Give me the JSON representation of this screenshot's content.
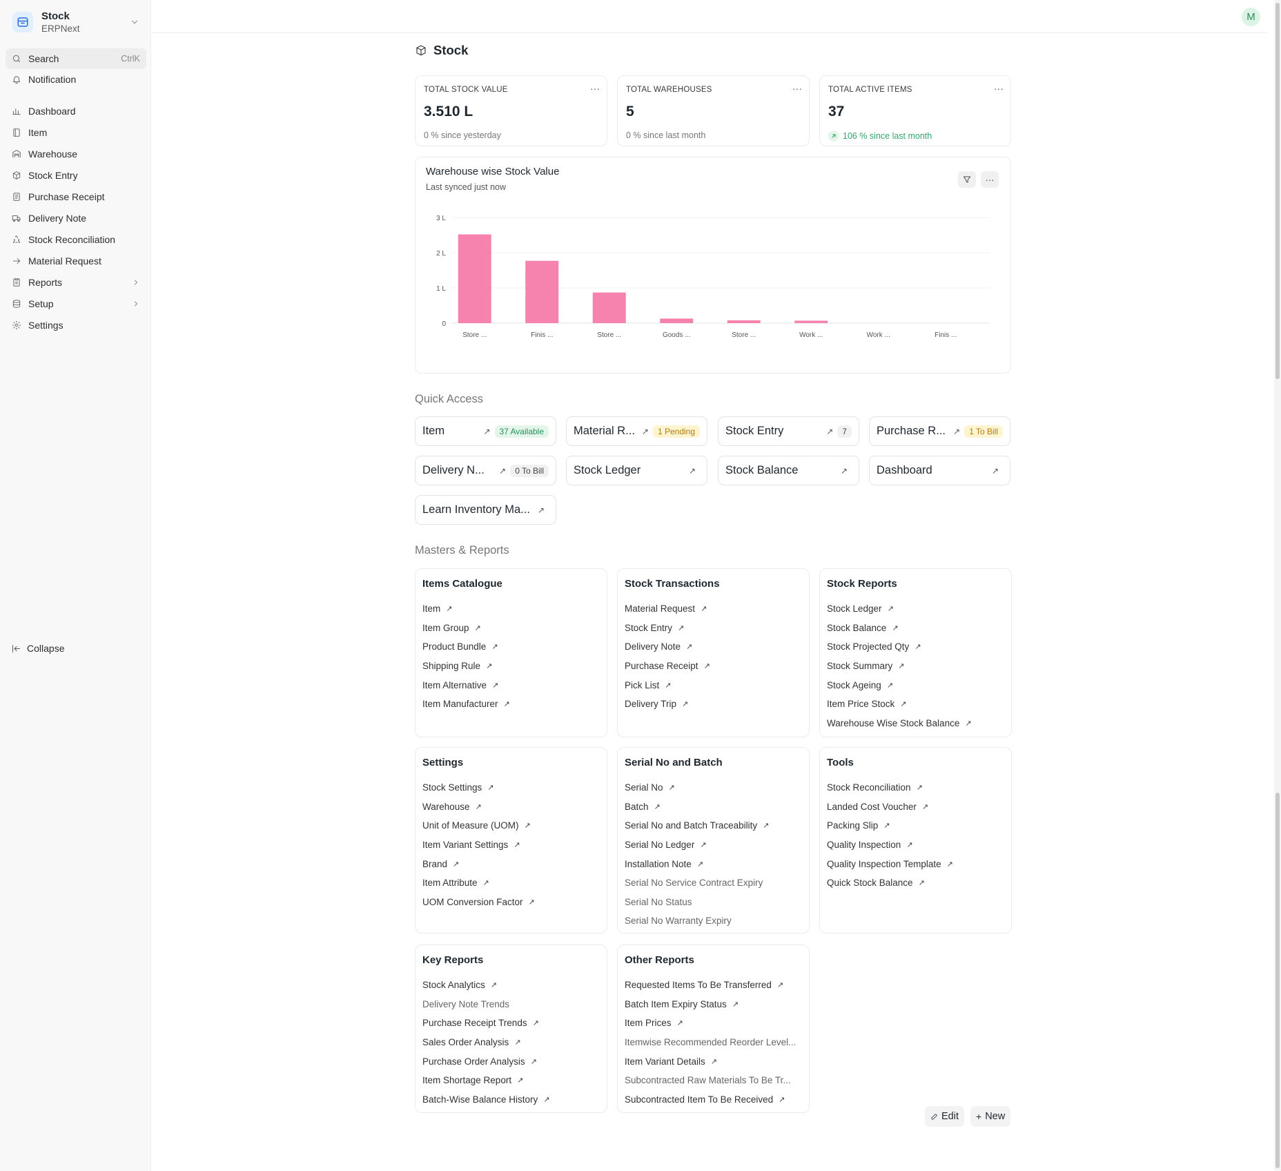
{
  "app": {
    "name": "Stock",
    "subtitle": "ERPNext"
  },
  "sidebar": {
    "search_label": "Search",
    "search_shortcut": "CtrlK",
    "notification_label": "Notification",
    "items": [
      {
        "label": "Dashboard",
        "icon": "bar-chart-icon"
      },
      {
        "label": "Item",
        "icon": "item-icon"
      },
      {
        "label": "Warehouse",
        "icon": "warehouse-icon"
      },
      {
        "label": "Stock Entry",
        "icon": "box-icon"
      },
      {
        "label": "Purchase Receipt",
        "icon": "receipt-icon"
      },
      {
        "label": "Delivery Note",
        "icon": "truck-icon"
      },
      {
        "label": "Stock Reconciliation",
        "icon": "recycle-icon"
      },
      {
        "label": "Material Request",
        "icon": "arrow-right-icon"
      },
      {
        "label": "Reports",
        "icon": "report-icon"
      },
      {
        "label": "Setup",
        "icon": "database-icon"
      },
      {
        "label": "Settings",
        "icon": "gear-icon"
      }
    ],
    "collapse_label": "Collapse"
  },
  "user": {
    "avatar_initial": "M"
  },
  "page": {
    "title": "Stock"
  },
  "number_cards": [
    {
      "label": "TOTAL STOCK VALUE",
      "value": "3.510 L",
      "stat": "0 % since yesterday"
    },
    {
      "label": "TOTAL WAREHOUSES",
      "value": "5",
      "stat": "0 % since last month"
    },
    {
      "label": "TOTAL ACTIVE ITEMS",
      "value": "37",
      "stat": "106 % since last month"
    }
  ],
  "chart_card": {
    "title": "Warehouse wise Stock Value",
    "subtitle": "Last synced just now"
  },
  "chart_data": {
    "type": "bar",
    "categories": [
      "Store ...",
      "Finis ...",
      "Store ...",
      "Goods ...",
      "Store ...",
      "Work ...",
      "Work ...",
      "Finis ..."
    ],
    "values": [
      252000,
      177000,
      87000,
      13000,
      8000,
      7000,
      0,
      0
    ],
    "yticks": [
      "0",
      "1 L",
      "2 L",
      "3 L"
    ],
    "ylim": [
      0,
      300000
    ],
    "color": "#f683ae",
    "grid": true
  },
  "quick_access": {
    "heading": "Quick Access",
    "items": [
      {
        "label": "Item",
        "badge": "37 Available",
        "badge_style": "green"
      },
      {
        "label": "Material R...",
        "badge": "1 Pending",
        "badge_style": "yellow"
      },
      {
        "label": "Stock Entry",
        "badge": "7",
        "badge_style": "gray"
      },
      {
        "label": "Purchase R...",
        "badge": "1 To Bill",
        "badge_style": "yellow"
      },
      {
        "label": "Delivery N...",
        "badge": "0 To Bill",
        "badge_style": "gray"
      },
      {
        "label": "Stock Ledger",
        "badge": "",
        "badge_style": ""
      },
      {
        "label": "Stock Balance",
        "badge": "",
        "badge_style": ""
      },
      {
        "label": "Dashboard",
        "badge": "",
        "badge_style": ""
      },
      {
        "label": "Learn Inventory Ma...",
        "badge": "",
        "badge_style": ""
      }
    ]
  },
  "masters": {
    "heading": "Masters & Reports",
    "cards": [
      {
        "title": "Items Catalogue",
        "links": [
          {
            "label": "Item",
            "arrow": true
          },
          {
            "label": "Item Group",
            "arrow": true
          },
          {
            "label": "Product Bundle",
            "arrow": true
          },
          {
            "label": "Shipping Rule",
            "arrow": true
          },
          {
            "label": "Item Alternative",
            "arrow": true
          },
          {
            "label": "Item Manufacturer",
            "arrow": true
          }
        ]
      },
      {
        "title": "Stock Transactions",
        "links": [
          {
            "label": "Material Request",
            "arrow": true
          },
          {
            "label": "Stock Entry",
            "arrow": true
          },
          {
            "label": "Delivery Note",
            "arrow": true
          },
          {
            "label": "Purchase Receipt",
            "arrow": true
          },
          {
            "label": "Pick List",
            "arrow": true
          },
          {
            "label": "Delivery Trip",
            "arrow": true
          }
        ]
      },
      {
        "title": "Stock Reports",
        "links": [
          {
            "label": "Stock Ledger",
            "arrow": true
          },
          {
            "label": "Stock Balance",
            "arrow": true
          },
          {
            "label": "Stock Projected Qty",
            "arrow": true
          },
          {
            "label": "Stock Summary",
            "arrow": true
          },
          {
            "label": "Stock Ageing",
            "arrow": true
          },
          {
            "label": "Item Price Stock",
            "arrow": true
          },
          {
            "label": "Warehouse Wise Stock Balance",
            "arrow": true
          }
        ]
      },
      {
        "title": "Settings",
        "links": [
          {
            "label": "Stock Settings",
            "arrow": true
          },
          {
            "label": "Warehouse",
            "arrow": true
          },
          {
            "label": "Unit of Measure (UOM)",
            "arrow": true
          },
          {
            "label": "Item Variant Settings",
            "arrow": true
          },
          {
            "label": "Brand",
            "arrow": true
          },
          {
            "label": "Item Attribute",
            "arrow": true
          },
          {
            "label": "UOM Conversion Factor",
            "arrow": true
          }
        ]
      },
      {
        "title": "Serial No and Batch",
        "links": [
          {
            "label": "Serial No",
            "arrow": true
          },
          {
            "label": "Batch",
            "arrow": true
          },
          {
            "label": "Serial No and Batch Traceability",
            "arrow": true
          },
          {
            "label": "Serial No Ledger",
            "arrow": true
          },
          {
            "label": "Installation Note",
            "arrow": true
          },
          {
            "label": "Serial No Service Contract Expiry",
            "arrow": false
          },
          {
            "label": "Serial No Status",
            "arrow": false
          },
          {
            "label": "Serial No Warranty Expiry",
            "arrow": false
          }
        ]
      },
      {
        "title": "Tools",
        "links": [
          {
            "label": "Stock Reconciliation",
            "arrow": true
          },
          {
            "label": "Landed Cost Voucher",
            "arrow": true
          },
          {
            "label": "Packing Slip",
            "arrow": true
          },
          {
            "label": "Quality Inspection",
            "arrow": true
          },
          {
            "label": "Quality Inspection Template",
            "arrow": true
          },
          {
            "label": "Quick Stock Balance",
            "arrow": true
          }
        ]
      },
      {
        "title": "Key Reports",
        "links": [
          {
            "label": "Stock Analytics",
            "arrow": true
          },
          {
            "label": "Delivery Note Trends",
            "arrow": false
          },
          {
            "label": "Purchase Receipt Trends",
            "arrow": true
          },
          {
            "label": "Sales Order Analysis",
            "arrow": true
          },
          {
            "label": "Purchase Order Analysis",
            "arrow": true
          },
          {
            "label": "Item Shortage Report",
            "arrow": true
          },
          {
            "label": "Batch-Wise Balance History",
            "arrow": true
          }
        ]
      },
      {
        "title": "Other Reports",
        "links": [
          {
            "label": "Requested Items To Be Transferred",
            "arrow": true
          },
          {
            "label": "Batch Item Expiry Status",
            "arrow": true
          },
          {
            "label": "Item Prices",
            "arrow": true
          },
          {
            "label": "Itemwise Recommended Reorder Level...",
            "arrow": false
          },
          {
            "label": "Item Variant Details",
            "arrow": true
          },
          {
            "label": "Subcontracted Raw Materials To Be Tr...",
            "arrow": false
          },
          {
            "label": "Subcontracted Item To Be Received",
            "arrow": true
          }
        ]
      }
    ]
  },
  "footer": {
    "edit_label": "Edit",
    "new_label": "New"
  }
}
